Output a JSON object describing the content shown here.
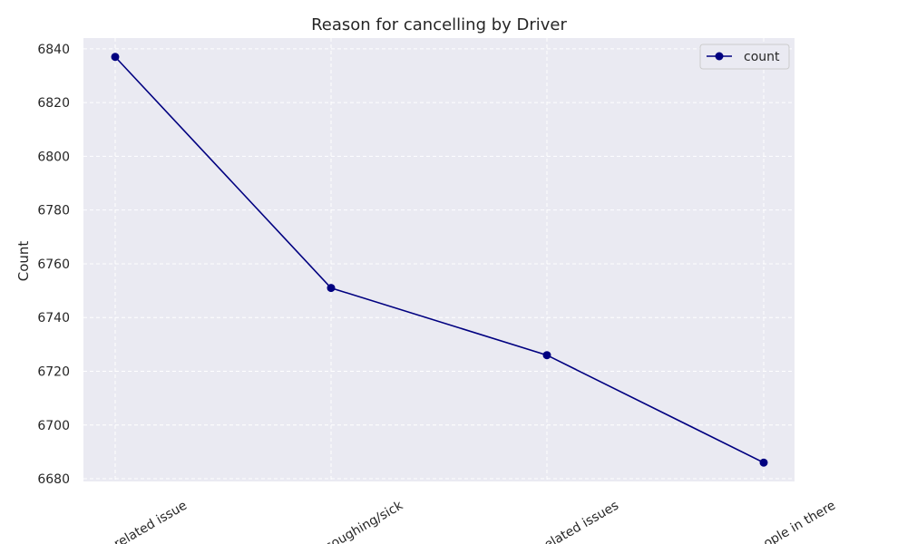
{
  "chart_data": {
    "type": "line",
    "title": "Reason for cancelling by Driver",
    "xlabel": "",
    "ylabel": "Count",
    "categories": [
      "Vehicle related issue",
      "Customer was coughing/sick",
      "Personal & Car related issues",
      "More than permitted people in there"
    ],
    "visible_category_labels": [
      "related issue",
      "coughing/sick",
      "elated issues",
      "ople in there"
    ],
    "series": [
      {
        "name": "count",
        "values": [
          6837,
          6751,
          6726,
          6686
        ],
        "color": "#000080"
      }
    ],
    "ylim": [
      6679,
      6844
    ],
    "yticks": [
      6680,
      6700,
      6720,
      6740,
      6760,
      6780,
      6800,
      6820,
      6840
    ],
    "grid": true,
    "grid_style": "dashed",
    "legend_position": "top-right",
    "background_color": "#eaeaf2"
  }
}
